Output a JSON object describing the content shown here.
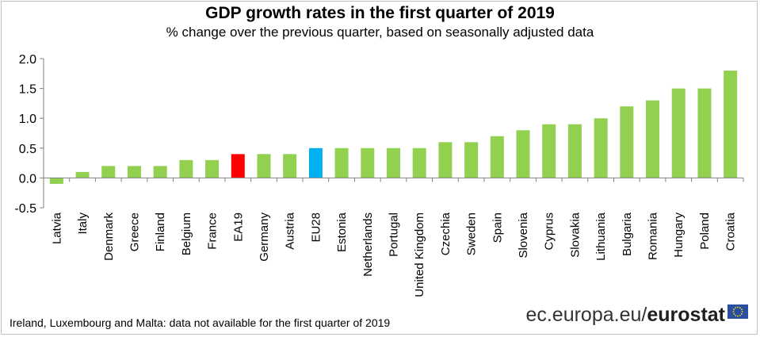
{
  "chart_data": {
    "type": "bar",
    "title": "GDP growth rates in the first quarter of 2019",
    "subtitle": "% change over the previous quarter, based on seasonally adjusted data",
    "xlabel": "",
    "ylabel": "",
    "ylim": [
      -0.5,
      2.0
    ],
    "yticks": [
      "2.0",
      "1.5",
      "1.0",
      "0.5",
      "0.0",
      "-0.5"
    ],
    "ytick_values": [
      2.0,
      1.5,
      1.0,
      0.5,
      0.0,
      -0.5
    ],
    "categories": [
      "Latvia",
      "Italy",
      "Denmark",
      "Greece",
      "Finland",
      "Belgium",
      "France",
      "EA19",
      "Germany",
      "Austria",
      "EU28",
      "Estonia",
      "Netherlands",
      "Portugal",
      "United Kingdom",
      "Czechia",
      "Sweden",
      "Spain",
      "Slovenia",
      "Cyprus",
      "Slovakia",
      "Lithuania",
      "Bulgaria",
      "Romania",
      "Hungary",
      "Poland",
      "Croatia"
    ],
    "values": [
      -0.1,
      0.1,
      0.2,
      0.2,
      0.2,
      0.3,
      0.3,
      0.4,
      0.4,
      0.4,
      0.5,
      0.5,
      0.5,
      0.5,
      0.5,
      0.6,
      0.6,
      0.7,
      0.8,
      0.9,
      0.9,
      1.0,
      1.2,
      1.3,
      1.5,
      1.5,
      1.8
    ],
    "highlight": {
      "EA19": "#ff0000",
      "EU28": "#00b0f0"
    },
    "bar_color": "#92d050",
    "grid": false
  },
  "footnote": "Ireland, Luxembourg and Malta: data not available for the first quarter of 2019",
  "brand": {
    "site": "ec.europa.eu/",
    "name": "eurostat"
  },
  "colors": {
    "flag_blue": "#2a4ea0",
    "flag_star": "#ffdd00"
  }
}
